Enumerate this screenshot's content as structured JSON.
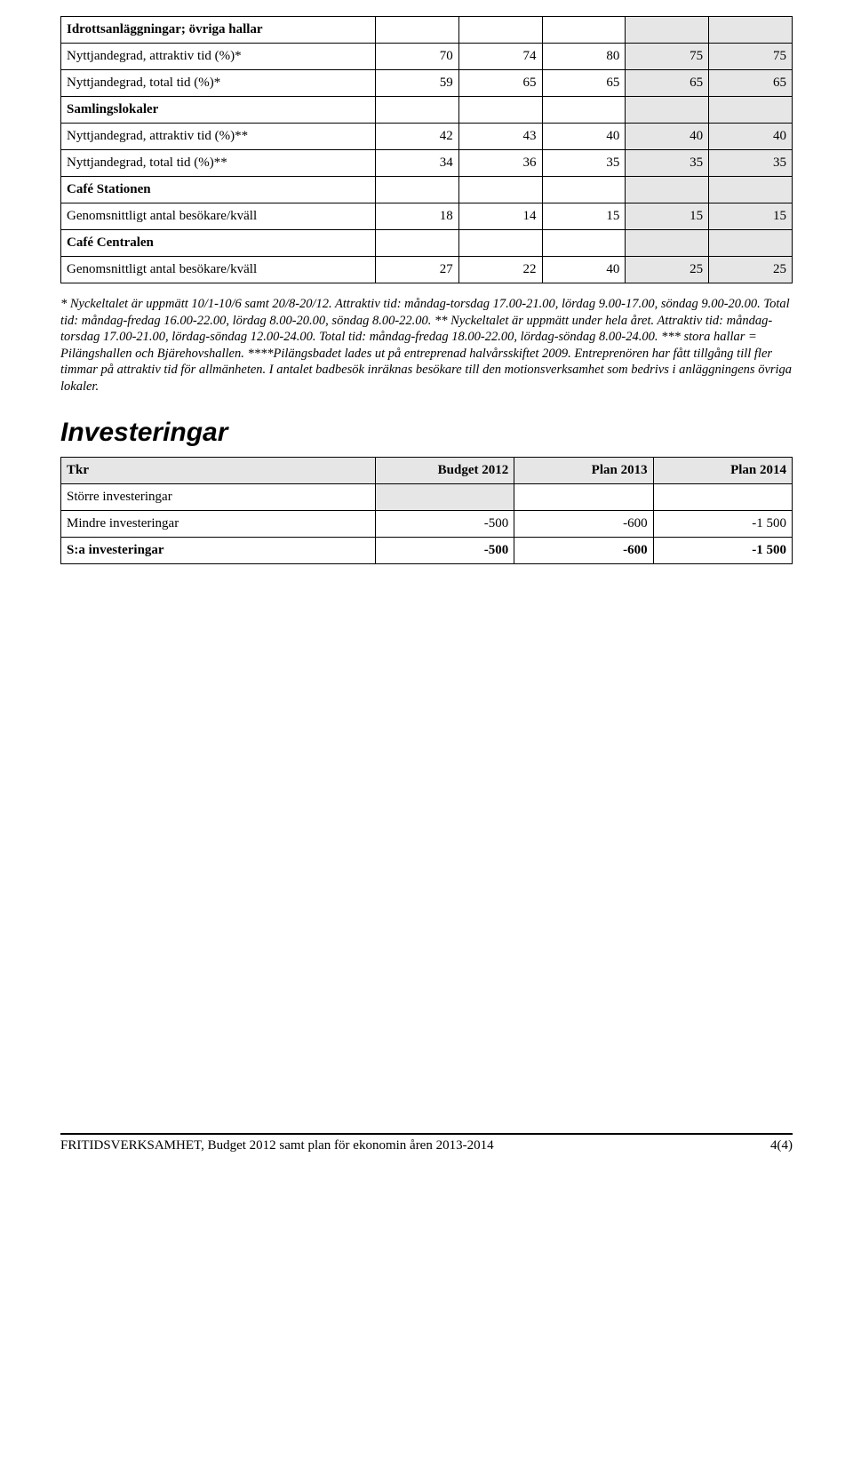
{
  "table1": {
    "rows": [
      {
        "label": "Idrottsanläggningar; övriga hallar",
        "bold": true,
        "vals": [
          "",
          "",
          "",
          "",
          ""
        ],
        "sectionHeader": true
      },
      {
        "label": "Nyttjandegrad, attraktiv tid (%)*",
        "vals": [
          "70",
          "74",
          "80",
          "75",
          "75"
        ]
      },
      {
        "label": "Nyttjandegrad, total tid (%)*",
        "vals": [
          "59",
          "65",
          "65",
          "65",
          "65"
        ]
      },
      {
        "label": "Samlingslokaler",
        "bold": true,
        "vals": [
          "",
          "",
          "",
          "",
          ""
        ],
        "sectionHeader": true
      },
      {
        "label": "Nyttjandegrad, attraktiv tid (%)**",
        "vals": [
          "42",
          "43",
          "40",
          "40",
          "40"
        ]
      },
      {
        "label": "Nyttjandegrad, total tid (%)**",
        "vals": [
          "34",
          "36",
          "35",
          "35",
          "35"
        ]
      },
      {
        "label": "Café Stationen",
        "bold": true,
        "vals": [
          "",
          "",
          "",
          "",
          ""
        ],
        "sectionHeader": true
      },
      {
        "label": "Genomsnittligt antal besökare/kväll",
        "vals": [
          "18",
          "14",
          "15",
          "15",
          "15"
        ]
      },
      {
        "label": "Café Centralen",
        "bold": true,
        "vals": [
          "",
          "",
          "",
          "",
          ""
        ],
        "sectionHeader": true
      },
      {
        "label": "Genomsnittligt antal besökare/kväll",
        "vals": [
          "27",
          "22",
          "40",
          "25",
          "25"
        ]
      }
    ]
  },
  "footnotes": "* Nyckeltalet är uppmätt 10/1-10/6 samt 20/8-20/12. Attraktiv tid: måndag-torsdag 17.00-21.00, lördag 9.00-17.00, söndag 9.00-20.00. Total tid: måndag-fredag 16.00-22.00, lördag 8.00-20.00, söndag 8.00-22.00. ** Nyckeltalet är uppmätt under hela året. Attraktiv tid: måndag-torsdag 17.00-21.00, lördag-söndag 12.00-24.00. Total tid: måndag-fredag 18.00-22.00, lördag-söndag 8.00-24.00. *** stora hallar = Pilängshallen och Bjärehovshallen. ****Pilängsbadet lades ut på entreprenad halvårsskiftet 2009. Entreprenören har fått tillgång till fler timmar på attraktiv tid för allmänheten. I antalet badbesök inräknas besökare till den motionsverksamhet som bedrivs i anläggningens övriga lokaler.",
  "investHeading": "Investeringar",
  "investTable": {
    "headers": [
      "Tkr",
      "Budget 2012",
      "Plan 2013",
      "Plan 2014"
    ],
    "rows": [
      {
        "label": "Större investeringar",
        "vals": [
          "",
          "",
          ""
        ],
        "sectionHeader": true
      },
      {
        "label": "Mindre investeringar",
        "vals": [
          "-500",
          "-600",
          "-1 500"
        ]
      },
      {
        "label": "S:a investeringar",
        "bold": true,
        "vals": [
          "-500",
          "-600",
          "-1 500"
        ]
      }
    ]
  },
  "footer": {
    "left": "FRITIDSVERKSAMHET, Budget 2012 samt plan för ekonomin åren 2013-2014",
    "right": "4(4)"
  }
}
